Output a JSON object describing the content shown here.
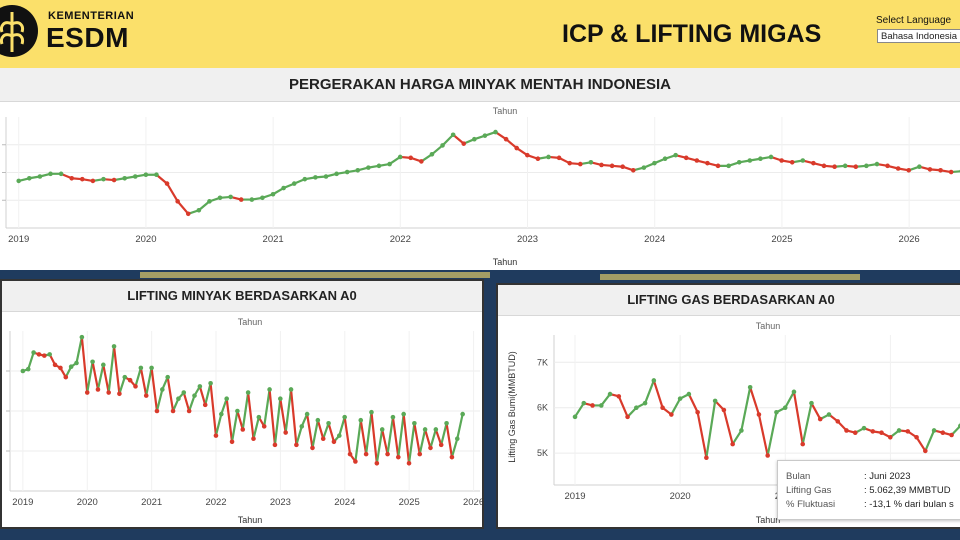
{
  "header": {
    "brand_small": "KEMENTERIAN",
    "brand_big": "ESDM",
    "title": "ICP & LIFTING MIGAS",
    "language_label": "Select Language",
    "language_value": "Bahasa Indonesia"
  },
  "colors": {
    "up": "#5aa957",
    "down": "#d93a2b",
    "yellow": "#fbe06a"
  },
  "charts": {
    "icp": {
      "heading": "PERGERAKAN HARGA MINYAK MENTAH INDONESIA",
      "column_header": "Tahun",
      "xlabel": "Tahun"
    },
    "oil": {
      "heading": "LIFTING MINYAK BERDASARKAN A0",
      "column_header": "Tahun",
      "xlabel": "Tahun"
    },
    "gas": {
      "heading": "LIFTING GAS BERDASARKAN A0",
      "column_header": "Tahun",
      "xlabel": "Tahun",
      "ylabel": "Lifting Gas Bumi(MMBTUD)"
    }
  },
  "tooltip": {
    "rows": [
      {
        "key": "Bulan",
        "value": ": Juni 2023"
      },
      {
        "key": "Lifting Gas",
        "value": ": 5.062,39 MMBTUD"
      },
      {
        "key": "% Fluktuasi",
        "value": ": -13,1 % dari bulan s"
      }
    ]
  },
  "chart_data": [
    {
      "type": "line",
      "title": "PERGERAKAN HARGA MINYAK MENTAH INDONESIA",
      "xlabel": "Tahun",
      "ylabel": "",
      "x_ticks": [
        "2019",
        "2020",
        "2021",
        "2022",
        "2023",
        "2024",
        "2025",
        "2026"
      ],
      "x_range": [
        2018.9,
        2026.4
      ],
      "y_range": [
        10,
        135
      ],
      "grid": true,
      "series": [
        {
          "x_start": 2019.0,
          "step": 0.0833,
          "values": [
            63,
            66,
            68,
            71,
            71,
            66,
            65,
            63,
            65,
            64,
            66,
            68,
            70,
            70,
            60,
            40,
            26,
            30,
            40,
            44,
            45,
            42,
            42,
            44,
            48,
            55,
            60,
            65,
            67,
            68,
            71,
            73,
            75,
            78,
            80,
            82,
            90,
            89,
            85,
            93,
            103,
            115,
            105,
            110,
            114,
            118,
            110,
            100,
            92,
            88,
            90,
            89,
            83,
            82,
            84,
            81,
            80,
            79,
            75,
            78,
            83,
            88,
            92,
            89,
            86,
            83,
            80,
            80,
            84,
            86,
            88,
            90,
            86,
            84,
            86,
            83,
            80,
            79,
            80,
            79,
            80,
            82,
            80,
            77,
            75,
            79,
            76,
            75,
            73,
            74,
            72,
            72,
            74,
            80,
            105,
            120,
            110,
            96
          ]
        }
      ]
    },
    {
      "type": "line",
      "title": "LIFTING MINYAK BERDASARKAN A0",
      "xlabel": "Tahun",
      "ylabel": "",
      "x_ticks": [
        "2019",
        "2020",
        "2021",
        "2022",
        "2023",
        "2024",
        "2025",
        "2026"
      ],
      "x_range": [
        2018.8,
        2026.1
      ],
      "y_range": [
        540,
        800
      ],
      "grid": true,
      "series": [
        {
          "x_start": 2019.0,
          "step": 0.0833,
          "values": [
            735,
            738,
            765,
            762,
            760,
            762,
            745,
            740,
            725,
            742,
            748,
            790,
            700,
            750,
            705,
            745,
            700,
            775,
            698,
            725,
            720,
            710,
            740,
            695,
            740,
            670,
            705,
            725,
            670,
            690,
            700,
            670,
            695,
            710,
            680,
            715,
            630,
            665,
            690,
            620,
            670,
            640,
            700,
            625,
            660,
            645,
            705,
            615,
            690,
            635,
            705,
            615,
            645,
            665,
            610,
            655,
            625,
            650,
            620,
            630,
            660,
            600,
            588,
            655,
            600,
            668,
            585,
            640,
            600,
            660,
            595,
            665,
            585,
            650,
            600,
            640,
            610,
            640,
            615,
            650,
            595,
            625,
            665
          ]
        }
      ]
    },
    {
      "type": "line",
      "title": "LIFTING GAS BERDASARKAN A0",
      "xlabel": "Tahun",
      "ylabel": "Lifting Gas Bumi(MMBTUD)",
      "x_ticks": [
        "2019",
        "2020",
        "2021",
        "2022",
        "2023"
      ],
      "y_ticks": [
        "5K",
        "6K",
        "7K"
      ],
      "x_range": [
        2018.8,
        2022.7
      ],
      "y_range": [
        4300,
        7600
      ],
      "grid": true,
      "series": [
        {
          "x_start": 2019.0,
          "step": 0.0833,
          "values": [
            5800,
            6100,
            6050,
            6050,
            6300,
            6250,
            5800,
            6000,
            6100,
            6600,
            6000,
            5850,
            6200,
            6300,
            5900,
            4900,
            6150,
            5950,
            5200,
            5500,
            6450,
            5850,
            4950,
            5900,
            6000,
            6350,
            5200,
            6100,
            5750,
            5850,
            5700,
            5500,
            5450,
            5550,
            5480,
            5450,
            5350,
            5500,
            5480,
            5350,
            5050,
            5500,
            5450,
            5400,
            5600,
            6500,
            6000,
            7200,
            5000,
            5600
          ]
        }
      ]
    }
  ]
}
